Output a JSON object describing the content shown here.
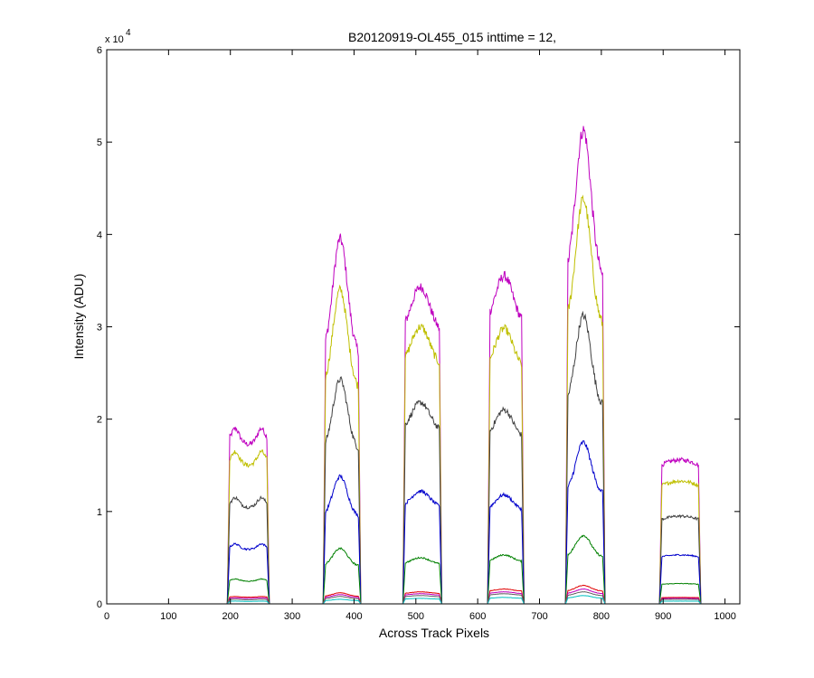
{
  "chart_data": {
    "type": "line",
    "title": "B20120919-OL455_015 inttime = 12,",
    "xlabel": "Across Track Pixels",
    "ylabel": "Intensity (ADU)",
    "y_exponent_label": {
      "prefix": "x 10",
      "exponent": "4"
    },
    "xlim": [
      0,
      1024
    ],
    "ylim": [
      0,
      60000
    ],
    "x_ticks": [
      0,
      100,
      200,
      300,
      400,
      500,
      600,
      700,
      800,
      900,
      1000
    ],
    "y_ticks": [
      0,
      10000,
      20000,
      30000,
      40000,
      50000,
      60000
    ],
    "y_tick_labels": [
      "0",
      "1",
      "2",
      "3",
      "4",
      "5",
      "6"
    ],
    "grid": false,
    "legend": "none",
    "windows": [
      {
        "x_start": 196,
        "x_end": 262
      },
      {
        "x_start": 351,
        "x_end": 410
      },
      {
        "x_start": 480,
        "x_end": 541
      },
      {
        "x_start": 617,
        "x_end": 674
      },
      {
        "x_start": 743,
        "x_end": 805
      },
      {
        "x_start": 895,
        "x_end": 960
      }
    ],
    "series": [
      {
        "color": "#bf00bf",
        "peaks": [
          19000,
          39500,
          34300,
          35500,
          51300,
          15600
        ]
      },
      {
        "color": "#bfbf00",
        "peaks": [
          16500,
          34000,
          30000,
          29800,
          43800,
          13300
        ]
      },
      {
        "color": "#404040",
        "peaks": [
          11500,
          24300,
          21800,
          21000,
          31200,
          9500
        ]
      },
      {
        "color": "#0000cc",
        "peaks": [
          6500,
          13800,
          12200,
          11800,
          17500,
          5300
        ]
      },
      {
        "color": "#008000",
        "peaks": [
          2700,
          6000,
          5000,
          5300,
          7400,
          2200
        ]
      },
      {
        "color": "#e00000",
        "peaks": [
          800,
          1200,
          1300,
          1600,
          2000,
          700
        ]
      },
      {
        "color": "#bf00bf",
        "peaks": [
          650,
          1000,
          1100,
          1300,
          1600,
          600
        ]
      },
      {
        "color": "#606060",
        "peaks": [
          500,
          800,
          900,
          1100,
          1300,
          500
        ]
      },
      {
        "color": "#00bfbf",
        "peaks": [
          300,
          500,
          600,
          700,
          900,
          300
        ]
      }
    ]
  }
}
